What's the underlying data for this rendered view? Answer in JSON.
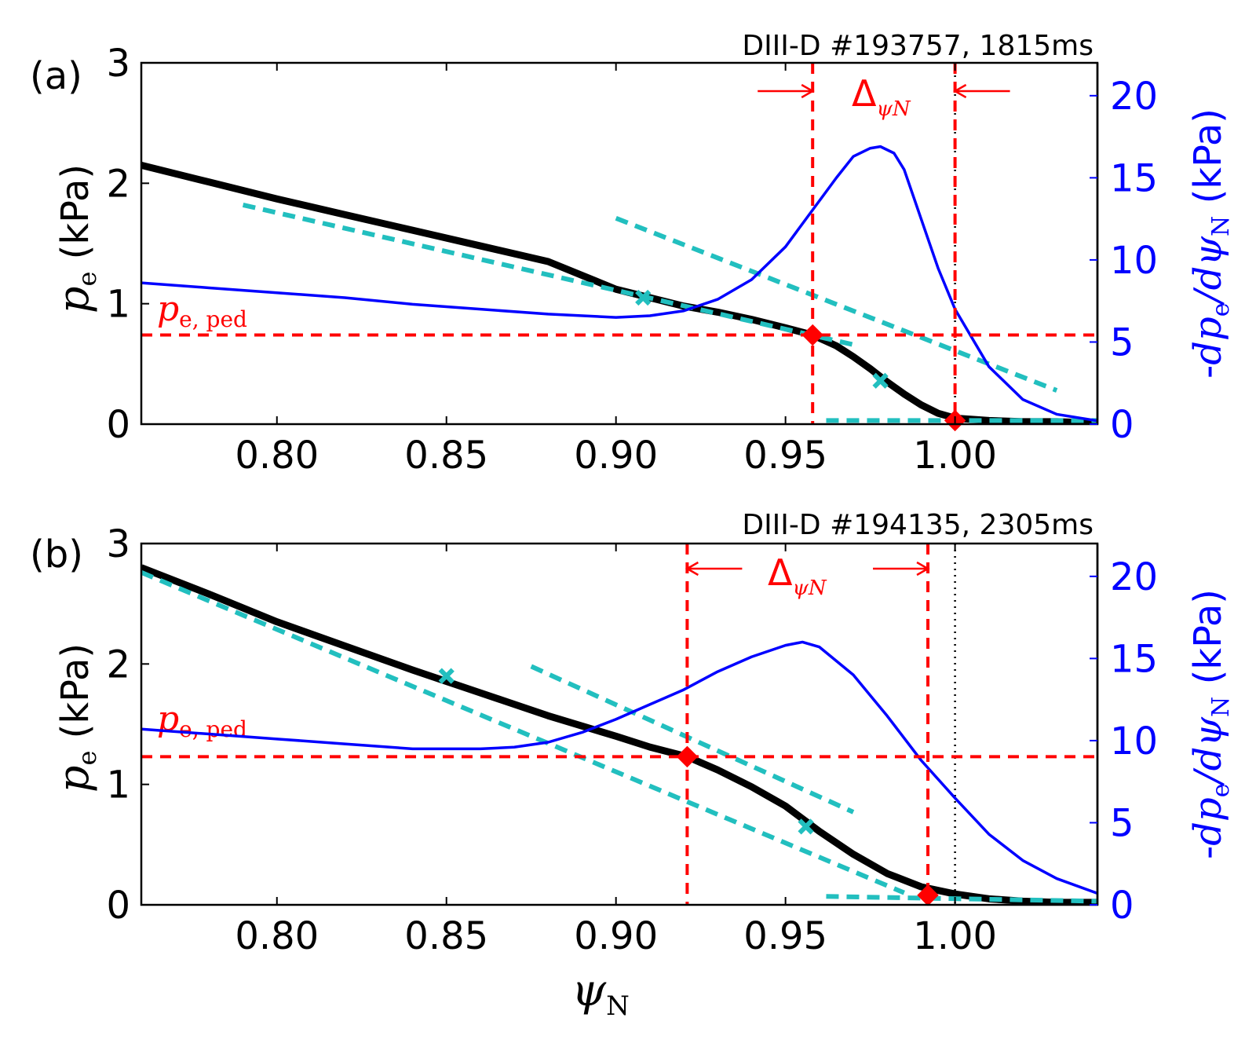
{
  "figure": {
    "xlabel": "ψN",
    "xlabel_main": "ψ",
    "xlabel_sub": "N",
    "colors": {
      "profile": "#000000",
      "fit": "#22bfbf",
      "gradient": "#0000ff",
      "pedestal": "#ff0000",
      "separatrix": "#000000"
    }
  },
  "chart_data": [
    {
      "type": "line",
      "panel_label": "(a)",
      "title": "DIII-D #193757, 1815ms",
      "ylabel_left": "pe (kPa)",
      "ylabel_left_parts": {
        "var": "p",
        "sub": "e",
        "unit": " (kPa)"
      },
      "ylabel_right": "-dpe/dψN (kPa)",
      "ylabel_right_parts": {
        "prefix": "-",
        "num": "dp",
        "num_sub": "e",
        "den": "/dψ",
        "den_sub": "N",
        "unit": " (kPa)"
      },
      "xlim": [
        0.76,
        1.042
      ],
      "ylim_left": [
        0,
        3
      ],
      "ylim_right": [
        0,
        22
      ],
      "xticks": [
        0.8,
        0.85,
        0.9,
        0.95,
        1.0
      ],
      "xtick_labels": [
        "0.80",
        "0.85",
        "0.90",
        "0.95",
        "1.00"
      ],
      "yticks_left": [
        0,
        1,
        2,
        3
      ],
      "yticks_right": [
        0,
        5,
        10,
        15,
        20
      ],
      "pe_ped": 0.74,
      "pe_ped_label": "pe,ped",
      "pe_ped_label_parts": {
        "var": "p",
        "sub": "e, ped"
      },
      "delta_label": "Δ",
      "delta_sub": "ψN",
      "ped_top_x": 0.958,
      "ped_foot_x": 1.0,
      "separatrix_x": 1.0,
      "series": [
        {
          "name": "pe profile",
          "axis": "left",
          "x": [
            0.76,
            0.78,
            0.8,
            0.82,
            0.84,
            0.86,
            0.88,
            0.9,
            0.92,
            0.93,
            0.94,
            0.95,
            0.958,
            0.965,
            0.97,
            0.975,
            0.98,
            0.985,
            0.99,
            0.995,
            1.0,
            1.01,
            1.02,
            1.03,
            1.042
          ],
          "y": [
            2.15,
            2.01,
            1.87,
            1.74,
            1.61,
            1.48,
            1.35,
            1.12,
            0.98,
            0.93,
            0.87,
            0.8,
            0.74,
            0.65,
            0.56,
            0.46,
            0.35,
            0.25,
            0.16,
            0.09,
            0.05,
            0.03,
            0.02,
            0.02,
            0.01
          ]
        },
        {
          "name": "-dpe/dpsiN",
          "axis": "right",
          "x": [
            0.76,
            0.78,
            0.8,
            0.82,
            0.84,
            0.86,
            0.88,
            0.9,
            0.91,
            0.92,
            0.93,
            0.94,
            0.95,
            0.96,
            0.965,
            0.97,
            0.975,
            0.978,
            0.982,
            0.985,
            0.99,
            0.995,
            1.0,
            1.01,
            1.02,
            1.03,
            1.042
          ],
          "y": [
            8.6,
            8.3,
            8.0,
            7.7,
            7.3,
            7.0,
            6.7,
            6.5,
            6.6,
            6.9,
            7.6,
            8.8,
            10.8,
            13.6,
            15.0,
            16.3,
            16.8,
            16.9,
            16.5,
            15.5,
            12.5,
            9.5,
            7.0,
            3.5,
            1.5,
            0.6,
            0.2
          ]
        }
      ],
      "fit_lines": [
        {
          "x": [
            0.79,
            0.97
          ],
          "y": [
            1.82,
            0.66
          ]
        },
        {
          "x": [
            0.9,
            1.03
          ],
          "y": [
            1.71,
            0.28
          ]
        },
        {
          "x": [
            0.962,
            1.042
          ],
          "y": [
            0.03,
            0.03
          ]
        }
      ],
      "fit_markers_x": [
        {
          "x": 0.908,
          "y": 1.05
        },
        {
          "x": 0.978,
          "y": 0.36
        }
      ],
      "ped_markers": [
        {
          "x": 0.958,
          "y": 0.74
        },
        {
          "x": 1.0,
          "y": 0.03
        }
      ]
    },
    {
      "type": "line",
      "panel_label": "(b)",
      "title": "DIII-D #194135, 2305ms",
      "ylabel_left": "pe (kPa)",
      "ylabel_left_parts": {
        "var": "p",
        "sub": "e",
        "unit": " (kPa)"
      },
      "ylabel_right": "-dpe/dψN (kPa)",
      "ylabel_right_parts": {
        "prefix": "-",
        "num": "dp",
        "num_sub": "e",
        "den": "/dψ",
        "den_sub": "N",
        "unit": " (kPa)"
      },
      "xlim": [
        0.76,
        1.042
      ],
      "ylim_left": [
        0,
        3
      ],
      "ylim_right": [
        0,
        22
      ],
      "xticks": [
        0.8,
        0.85,
        0.9,
        0.95,
        1.0
      ],
      "xtick_labels": [
        "0.80",
        "0.85",
        "0.90",
        "0.95",
        "1.00"
      ],
      "yticks_left": [
        0,
        1,
        2,
        3
      ],
      "yticks_right": [
        0,
        5,
        10,
        15,
        20
      ],
      "pe_ped": 1.23,
      "pe_ped_label": "pe,ped",
      "pe_ped_label_parts": {
        "var": "p",
        "sub": "e, ped"
      },
      "delta_label": "Δ",
      "delta_sub": "ψN",
      "ped_top_x": 0.921,
      "ped_foot_x": 0.992,
      "separatrix_x": 1.0,
      "series": [
        {
          "name": "pe profile",
          "axis": "left",
          "x": [
            0.76,
            0.78,
            0.8,
            0.82,
            0.84,
            0.86,
            0.88,
            0.9,
            0.91,
            0.921,
            0.93,
            0.94,
            0.95,
            0.96,
            0.97,
            0.98,
            0.99,
            1.0,
            1.01,
            1.02,
            1.03,
            1.042
          ],
          "y": [
            2.8,
            2.58,
            2.35,
            2.15,
            1.95,
            1.76,
            1.57,
            1.4,
            1.31,
            1.23,
            1.12,
            0.98,
            0.82,
            0.61,
            0.42,
            0.26,
            0.15,
            0.09,
            0.05,
            0.03,
            0.02,
            0.02
          ]
        },
        {
          "name": "-dpe/dpsiN",
          "axis": "right",
          "x": [
            0.76,
            0.78,
            0.8,
            0.82,
            0.84,
            0.86,
            0.87,
            0.88,
            0.89,
            0.9,
            0.91,
            0.92,
            0.93,
            0.94,
            0.95,
            0.955,
            0.96,
            0.97,
            0.98,
            0.99,
            1.0,
            1.01,
            1.02,
            1.03,
            1.042
          ],
          "y": [
            10.7,
            10.4,
            10.1,
            9.8,
            9.5,
            9.5,
            9.6,
            9.9,
            10.5,
            11.3,
            12.2,
            13.1,
            14.2,
            15.1,
            15.8,
            16.0,
            15.7,
            14.0,
            11.5,
            8.8,
            6.5,
            4.3,
            2.7,
            1.6,
            0.7
          ]
        }
      ],
      "fit_lines": [
        {
          "x": [
            0.76,
            0.985
          ],
          "y": [
            2.76,
            0.1
          ]
        },
        {
          "x": [
            0.875,
            0.97
          ],
          "y": [
            1.98,
            0.77
          ]
        },
        {
          "x": [
            0.962,
            1.042
          ],
          "y": [
            0.07,
            0.03
          ]
        }
      ],
      "fit_markers_x": [
        {
          "x": 0.85,
          "y": 1.9
        },
        {
          "x": 0.956,
          "y": 0.65
        }
      ],
      "ped_markers": [
        {
          "x": 0.921,
          "y": 1.23
        },
        {
          "x": 0.992,
          "y": 0.08
        }
      ]
    }
  ]
}
